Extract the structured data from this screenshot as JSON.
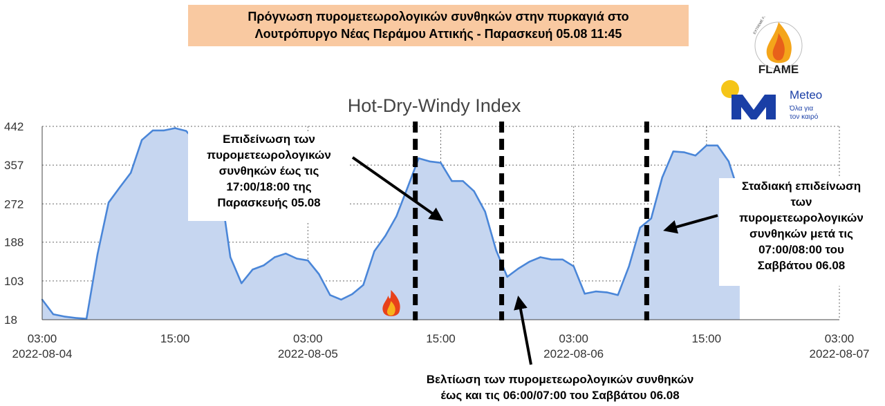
{
  "header": {
    "title_line1": "Πρόγνωση πυρομετεωρολογικών συνθηκών στην πυρκαγιά στο",
    "title_line2": "Λουτρόπυργο Νέας Περάμου Αττικής - Παρασκευή 05.08 11:45"
  },
  "logos": {
    "flame": "FLAME",
    "flame_ring": "EXTREME FIRE WEATHER & FIRE BEHAVIOUR",
    "meteo": "Meteo",
    "meteo_tagline1": "Όλα για",
    "meteo_tagline2": "τον καιρό"
  },
  "chart_data": {
    "type": "area",
    "title": "Hot-Dry-Windy Index",
    "xlabel": "",
    "ylabel": "",
    "y_ticks": [
      18,
      103,
      188,
      272,
      357,
      442
    ],
    "ylim": [
      18,
      442
    ],
    "x_ticks": [
      {
        "time": "03:00",
        "date": "2022-08-04",
        "t": 0
      },
      {
        "time": "15:00",
        "date": "",
        "t": 12
      },
      {
        "time": "03:00",
        "date": "2022-08-05",
        "t": 24
      },
      {
        "time": "15:00",
        "date": "",
        "t": 36
      },
      {
        "time": "03:00",
        "date": "2022-08-06",
        "t": 48
      },
      {
        "time": "15:00",
        "date": "",
        "t": 60
      },
      {
        "time": "03:00",
        "date": "2022-08-07",
        "t": 72
      }
    ],
    "x_unit": "hours since 2022-08-04 03:00",
    "xlim": [
      0,
      72
    ],
    "grid": true,
    "fill_color": "#c6d6f0",
    "line_color": "#4a86d8",
    "series": [
      {
        "name": "",
        "x": [
          0,
          1,
          2,
          3,
          4,
          5,
          6,
          7,
          8,
          9,
          10,
          11,
          12,
          13,
          14,
          15,
          16,
          17,
          18,
          19,
          20,
          21,
          22,
          23,
          24,
          25,
          26,
          27,
          28,
          29,
          30,
          31,
          32,
          33,
          34,
          35,
          36,
          37,
          38,
          39,
          40,
          41,
          42,
          43,
          44,
          45,
          46,
          47,
          48,
          49,
          50,
          51,
          52,
          53,
          54,
          55,
          56,
          57,
          58,
          59,
          60,
          61,
          62,
          63
        ],
        "values": [
          62,
          30,
          25,
          22,
          20,
          162,
          275,
          308,
          340,
          412,
          433,
          433,
          438,
          432,
          405,
          395,
          325,
          155,
          98,
          128,
          137,
          155,
          163,
          152,
          148,
          118,
          72,
          62,
          74,
          94,
          168,
          202,
          245,
          308,
          372,
          365,
          362,
          322,
          322,
          300,
          255,
          170,
          112,
          130,
          145,
          155,
          150,
          150,
          135,
          75,
          80,
          78,
          72,
          135,
          220,
          240,
          330,
          387,
          385,
          378,
          400,
          400,
          365,
          290
        ]
      }
    ],
    "event_markers": [
      {
        "t": 33.7,
        "style": "dashed"
      },
      {
        "t": 41.5,
        "style": "dashed"
      },
      {
        "t": 54.6,
        "style": "dashed"
      }
    ],
    "fire_icon_t": 31.5,
    "annotations": [
      "Επιδείνωση των πυρομετεωρολογικών συνθηκών έως τις 17:00/18:00 της Παρασκευής 05.08",
      "Σταδιακή επιδείνωση των πυρομετεωρολογικών συνθηκών μετά τις 07:00/08:00 του Σαββάτου 06.08",
      "Βελτίωση των πυρομετεωρολογικών συνθηκών έως και τις 06:00/07:00 του Σαββάτου 06.08"
    ]
  },
  "annotations": {
    "worsening_fri": [
      "Επιδείνωση των",
      "πυρομετεωρολογικών",
      "συνθηκών έως τις",
      "17:00/18:00 της",
      "Παρασκευής 05.08"
    ],
    "gradual_sat": [
      "Σταδιακή επιδείνωση",
      "των",
      "πυρομετεωρολογικών",
      "συνθηκών μετά τις",
      "07:00/08:00 του",
      "Σαββάτου 06.08"
    ],
    "improvement": [
      "Βελτίωση των πυρομετεωρολογικών συνθηκών",
      "έως και τις 06:00/07:00 του Σαββάτου 06.08"
    ]
  }
}
